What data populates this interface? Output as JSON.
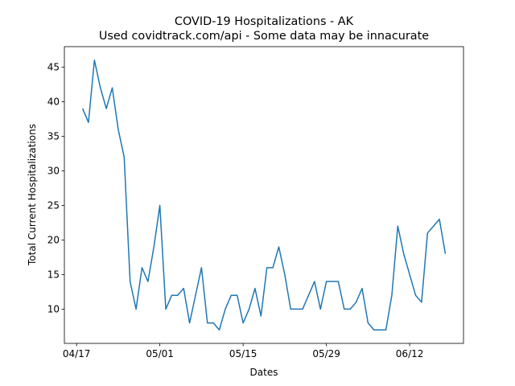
{
  "chart_data": {
    "type": "line",
    "title": "COVID-19 Hospitalizations - AK",
    "subtitle": "Used covidtrack.com/api - Some data may be innacurate",
    "x_label": "Dates",
    "y_label": "Total Current Hospitalizations",
    "x": [
      "04/18",
      "04/19",
      "04/20",
      "04/21",
      "04/22",
      "04/23",
      "04/24",
      "04/25",
      "04/26",
      "04/27",
      "04/28",
      "04/29",
      "04/30",
      "05/01",
      "05/02",
      "05/03",
      "05/04",
      "05/05",
      "05/06",
      "05/07",
      "05/08",
      "05/09",
      "05/10",
      "05/11",
      "05/12",
      "05/13",
      "05/14",
      "05/15",
      "05/16",
      "05/17",
      "05/18",
      "05/19",
      "05/20",
      "05/21",
      "05/22",
      "05/23",
      "05/24",
      "05/25",
      "05/26",
      "05/27",
      "05/28",
      "05/29",
      "05/30",
      "05/31",
      "06/01",
      "06/02",
      "06/03",
      "06/04",
      "06/05",
      "06/06",
      "06/07",
      "06/08",
      "06/09",
      "06/10",
      "06/11",
      "06/12",
      "06/13",
      "06/14",
      "06/15",
      "06/16",
      "06/17",
      "06/18"
    ],
    "series": [
      {
        "name": "AK",
        "color": "#1f77b4",
        "values": [
          39,
          37,
          46,
          42,
          39,
          42,
          36,
          32,
          14,
          10,
          16,
          14,
          19,
          25,
          10,
          12,
          12,
          13,
          8,
          12,
          16,
          8,
          8,
          7,
          10,
          12,
          12,
          8,
          10,
          13,
          9,
          16,
          16,
          19,
          15,
          10,
          10,
          10,
          12,
          14,
          10,
          14,
          14,
          14,
          10,
          10,
          11,
          13,
          8,
          7,
          7,
          7,
          12,
          22,
          18,
          15,
          12,
          11,
          21,
          22,
          23,
          18
        ]
      }
    ],
    "xticks": [
      "04/17",
      "05/01",
      "05/15",
      "05/29",
      "06/12"
    ],
    "ylim": [
      5.05,
      47.95
    ],
    "yticks": [
      10,
      15,
      20,
      25,
      30,
      35,
      40,
      45
    ]
  }
}
